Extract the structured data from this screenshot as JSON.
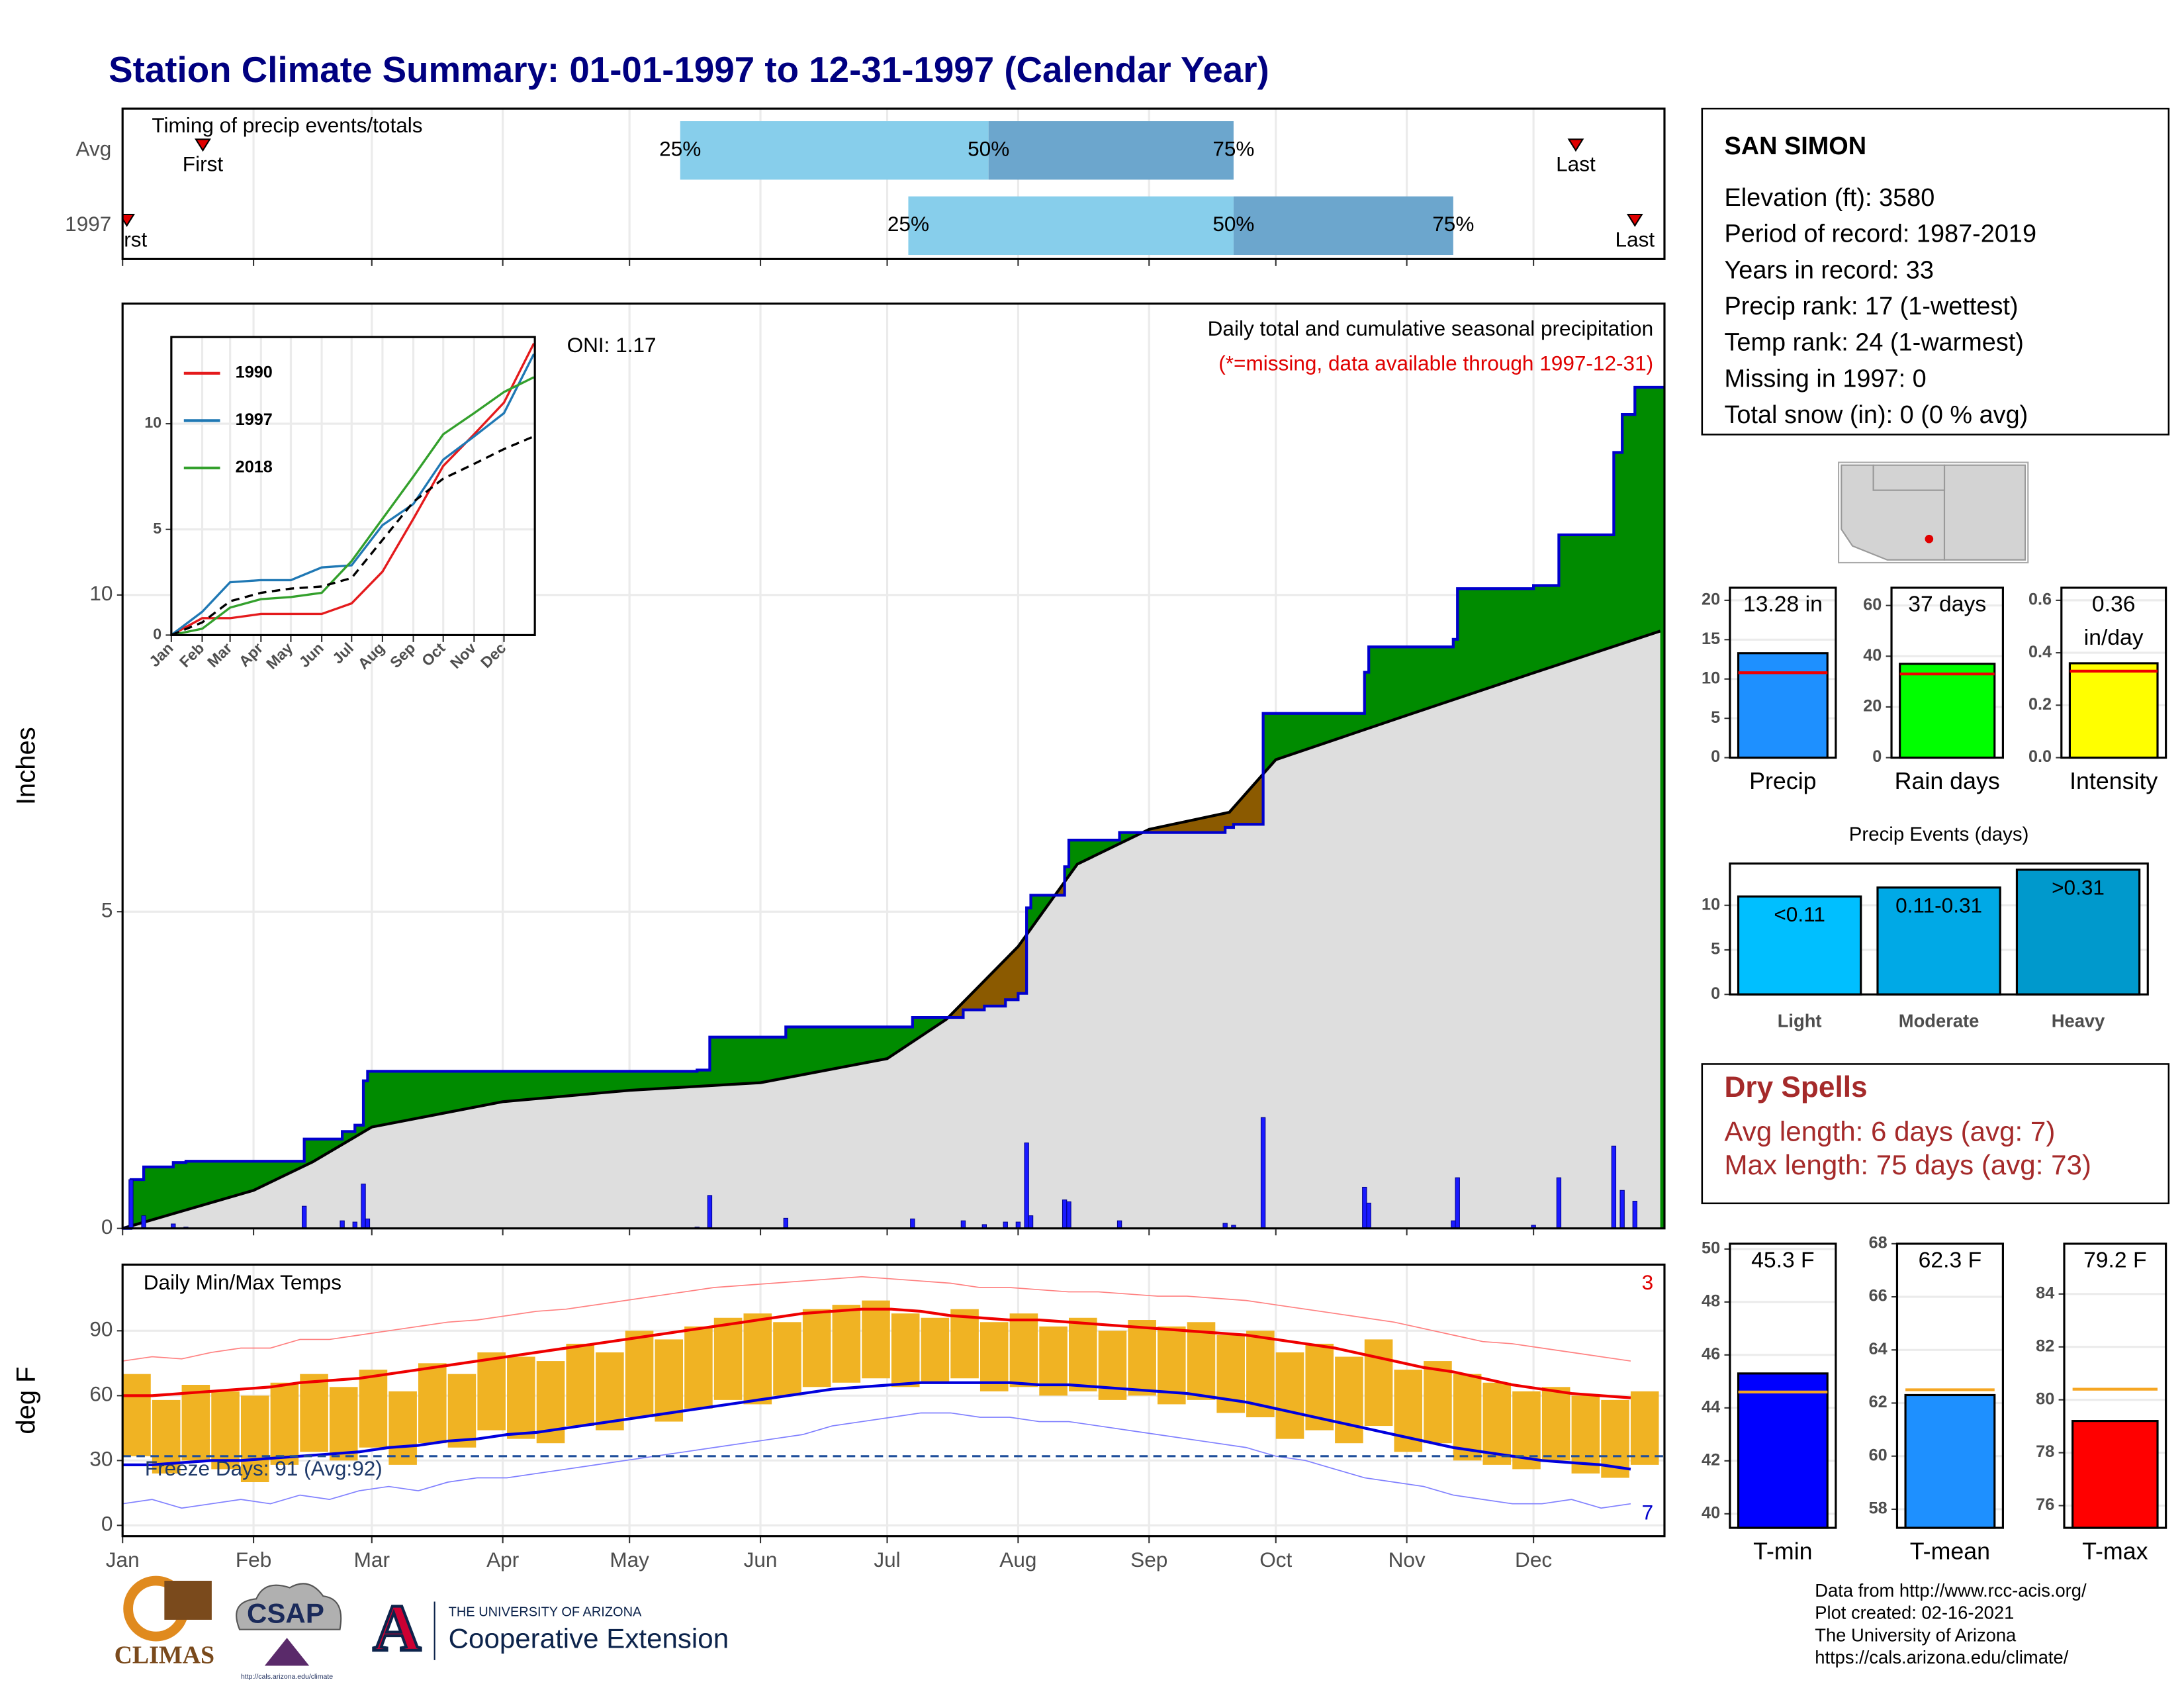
{
  "title": "Station Climate Summary: 01-01-1997 to 12-31-1997 (Calendar Year)",
  "station": {
    "name": "SAN SIMON",
    "lines": [
      "Elevation (ft): 3580",
      "Period of record: 1987-2019",
      "Years in record: 33",
      "Precip rank: 17 (1-wettest)",
      "Temp rank: 24 (1-warmest)",
      "Missing in 1997: 0",
      "Total snow (in): 0 (0 % avg)"
    ]
  },
  "dry_spells": {
    "title": "Dry Spells",
    "lines": [
      "Avg length: 6 days (avg: 7)",
      "Max length: 75 days (avg: 73)"
    ]
  },
  "credits": [
    "Data from http://www.rcc-acis.org/",
    "Plot created: 02-16-2021",
    "The University of Arizona",
    "https://cals.arizona.edu/climate/"
  ],
  "logos": {
    "climas": "CLIMAS",
    "csap": "CSAP",
    "csap_url": "http://cals.arizona.edu/climate",
    "ua_mark": "A",
    "ua": "THE UNIVERSITY OF ARIZONA",
    "coop": "Cooperative Extension"
  },
  "chart_data": [
    {
      "type": "timing",
      "title": "Timing of precip events/totals",
      "marker_labels": [
        "First",
        "25%",
        "50%",
        "75%",
        "Last"
      ],
      "rows": [
        {
          "name": "Avg",
          "values": [
            20,
            133,
            206,
            264,
            345
          ]
        },
        {
          "name": "1997",
          "values": [
            2,
            187,
            264,
            316,
            359
          ]
        }
      ],
      "colors": [
        "#87ceeb",
        "#6ca6cd"
      ],
      "marker_color": "#e00000",
      "xlim": [
        1,
        366
      ],
      "xticks": [
        1,
        32,
        60,
        91,
        121,
        152,
        182,
        213,
        244,
        274,
        305,
        335
      ],
      "grid": true
    },
    {
      "type": "cumulative_precip",
      "subtitle": "Daily total and cumulative seasonal precipitation",
      "note": "(*=missing, data available through 1997-12-31)",
      "oni": "ONI: 1.17",
      "ylabel": "Inches",
      "events": {
        "x": [
          3,
          6,
          13,
          16,
          44,
          53,
          56,
          58,
          59,
          137,
          140,
          158,
          188,
          200,
          205,
          210,
          213,
          215,
          216,
          224,
          225,
          237,
          262,
          264,
          271,
          295,
          296,
          316,
          317,
          335,
          341,
          354,
          356,
          359
        ],
        "values": [
          0.77,
          0.2,
          0.07,
          0.02,
          0.35,
          0.12,
          0.1,
          0.7,
          0.15,
          0.02,
          0.52,
          0.16,
          0.15,
          0.12,
          0.06,
          0.1,
          0.1,
          1.35,
          0.2,
          0.45,
          0.42,
          0.12,
          0.08,
          0.05,
          1.75,
          0.65,
          0.4,
          0.12,
          0.8,
          0.05,
          0.8,
          1.3,
          0.6,
          0.43
        ]
      },
      "average": {
        "x": [
          1,
          32,
          46,
          60,
          91,
          121,
          152,
          182,
          196,
          213,
          227,
          244,
          263,
          274,
          305,
          335,
          365
        ],
        "values": [
          0,
          0.6,
          1.05,
          1.6,
          2.0,
          2.18,
          2.3,
          2.68,
          3.3,
          4.45,
          5.75,
          6.3,
          6.57,
          7.4,
          8.1,
          8.77,
          9.43
        ]
      },
      "above_color": "#008b00",
      "below_color": "#8b5a00",
      "average_color": "#dedede",
      "line_color": "#0000cd",
      "bar_color": "#1a1aff",
      "xlim": [
        1,
        366
      ],
      "xticks": [
        1,
        32,
        60,
        91,
        121,
        152,
        182,
        213,
        244,
        274,
        305,
        335
      ],
      "ylim": [
        0,
        14.6
      ],
      "yticks": [
        0,
        5,
        10
      ],
      "grid": true
    },
    {
      "type": "line",
      "x": [
        1,
        32,
        60,
        91,
        121,
        152,
        182,
        213,
        244,
        274,
        305,
        335,
        365
      ],
      "series": [
        {
          "name": "1990",
          "color": "#e41a1c",
          "values": [
            0,
            0.8,
            0.8,
            1.0,
            1.0,
            1.0,
            1.5,
            3.0,
            5.5,
            8.0,
            9.5,
            11.0,
            13.8
          ]
        },
        {
          "name": "1997",
          "color": "#1f78b4",
          "values": [
            0,
            1.1,
            2.5,
            2.6,
            2.6,
            3.2,
            3.3,
            5.2,
            6.2,
            8.3,
            9.4,
            10.5,
            13.3
          ]
        },
        {
          "name": "2018",
          "color": "#33a02c",
          "values": [
            0,
            0.3,
            1.3,
            1.7,
            1.8,
            2.0,
            3.5,
            5.5,
            7.5,
            9.5,
            10.5,
            11.5,
            12.2
          ]
        }
      ],
      "average": [
        0,
        0.6,
        1.6,
        2.0,
        2.2,
        2.3,
        2.7,
        4.5,
        6.3,
        7.4,
        8.1,
        8.8,
        9.4
      ],
      "xlim": [
        1,
        366
      ],
      "xticks": [
        {
          "value": 1,
          "label": "Jan"
        },
        {
          "value": 32,
          "label": "Feb"
        },
        {
          "value": 60,
          "label": "Mar"
        },
        {
          "value": 91,
          "label": "Apr"
        },
        {
          "value": 121,
          "label": "May"
        },
        {
          "value": 152,
          "label": "Jun"
        },
        {
          "value": 182,
          "label": "Jul"
        },
        {
          "value": 213,
          "label": "Aug"
        },
        {
          "value": 244,
          "label": "Sep"
        },
        {
          "value": 274,
          "label": "Oct"
        },
        {
          "value": 305,
          "label": "Nov"
        },
        {
          "value": 335,
          "label": "Dec"
        }
      ],
      "ylim": [
        0,
        14.1
      ],
      "yticks": [
        0,
        5,
        10
      ],
      "grid": true,
      "legend": "top-left"
    },
    {
      "type": "temperature",
      "title": "Daily Min/Max Temps",
      "freeze_label": "Freeze Days: 91 (Avg:92)",
      "ylabel": "deg F",
      "freeze": 32,
      "record_high_count": 3,
      "record_low_count": 7,
      "x": [
        1,
        8,
        15,
        22,
        29,
        36,
        43,
        50,
        57,
        64,
        71,
        78,
        85,
        92,
        99,
        106,
        113,
        120,
        127,
        134,
        141,
        148,
        155,
        162,
        169,
        176,
        183,
        190,
        197,
        204,
        211,
        218,
        225,
        232,
        239,
        246,
        253,
        260,
        267,
        274,
        281,
        288,
        295,
        302,
        309,
        316,
        323,
        330,
        337,
        344,
        351,
        358
      ],
      "max": [
        70,
        58,
        65,
        62,
        60,
        66,
        70,
        64,
        72,
        62,
        75,
        70,
        80,
        78,
        76,
        84,
        80,
        90,
        86,
        92,
        96,
        98,
        94,
        100,
        102,
        104,
        98,
        96,
        100,
        94,
        98,
        92,
        96,
        90,
        95,
        92,
        94,
        88,
        90,
        80,
        84,
        78,
        86,
        72,
        76,
        70,
        66,
        62,
        64,
        60,
        58,
        62
      ],
      "min": [
        32,
        24,
        30,
        26,
        20,
        28,
        34,
        30,
        36,
        28,
        38,
        36,
        44,
        40,
        38,
        46,
        44,
        50,
        48,
        54,
        58,
        56,
        60,
        64,
        66,
        68,
        64,
        66,
        68,
        62,
        64,
        60,
        62,
        58,
        60,
        56,
        58,
        52,
        50,
        40,
        44,
        38,
        46,
        34,
        38,
        30,
        28,
        26,
        30,
        24,
        22,
        28
      ],
      "avg_max": [
        60,
        60,
        61,
        62,
        63,
        64,
        66,
        67,
        68,
        70,
        72,
        74,
        76,
        78,
        80,
        82,
        84,
        86,
        88,
        90,
        92,
        94,
        96,
        98,
        99,
        100,
        100,
        99,
        97,
        96,
        95,
        95,
        94,
        93,
        92,
        91,
        90,
        89,
        88,
        86,
        84,
        82,
        79,
        76,
        73,
        71,
        68,
        65,
        63,
        61,
        60,
        59
      ],
      "avg_min": [
        28,
        28,
        29,
        30,
        30,
        31,
        32,
        33,
        34,
        36,
        37,
        39,
        40,
        42,
        43,
        45,
        47,
        49,
        51,
        53,
        55,
        57,
        59,
        61,
        63,
        64,
        65,
        66,
        66,
        66,
        66,
        65,
        65,
        64,
        63,
        62,
        61,
        59,
        57,
        54,
        51,
        48,
        45,
        42,
        39,
        36,
        34,
        32,
        30,
        29,
        28,
        26
      ],
      "record_high": [
        76,
        78,
        77,
        80,
        82,
        82,
        86,
        86,
        88,
        90,
        92,
        94,
        95,
        97,
        99,
        100,
        102,
        104,
        106,
        108,
        110,
        111,
        112,
        113,
        114,
        115,
        114,
        113,
        112,
        110,
        110,
        109,
        108,
        108,
        107,
        106,
        106,
        105,
        104,
        102,
        100,
        98,
        96,
        94,
        91,
        88,
        85,
        84,
        82,
        80,
        78,
        76
      ],
      "record_low": [
        10,
        12,
        8,
        10,
        12,
        10,
        14,
        12,
        16,
        18,
        16,
        20,
        22,
        22,
        24,
        26,
        28,
        30,
        32,
        34,
        36,
        38,
        40,
        42,
        46,
        48,
        50,
        52,
        52,
        50,
        50,
        48,
        48,
        46,
        44,
        42,
        40,
        38,
        36,
        32,
        30,
        26,
        22,
        20,
        18,
        14,
        12,
        10,
        10,
        12,
        8,
        10
      ],
      "colors": {
        "bars": "#f0b323",
        "avg_max": "#ee0000",
        "avg_min": "#0000dd",
        "record_high": "#ff8080",
        "record_low": "#8080ff",
        "freeze": "#1f4e9a"
      },
      "xlim": [
        1,
        366
      ],
      "xticks": [
        {
          "value": 1,
          "label": "Jan"
        },
        {
          "value": 32,
          "label": "Feb"
        },
        {
          "value": 60,
          "label": "Mar"
        },
        {
          "value": 91,
          "label": "Apr"
        },
        {
          "value": 121,
          "label": "May"
        },
        {
          "value": 152,
          "label": "Jun"
        },
        {
          "value": 182,
          "label": "Jul"
        },
        {
          "value": 213,
          "label": "Aug"
        },
        {
          "value": 244,
          "label": "Sep"
        },
        {
          "value": 274,
          "label": "Oct"
        },
        {
          "value": 305,
          "label": "Nov"
        },
        {
          "value": 335,
          "label": "Dec"
        }
      ],
      "ylim": [
        -5,
        120.6
      ],
      "yticks": [
        0,
        30,
        60,
        90
      ],
      "grid": true
    },
    {
      "type": "bar",
      "categories": [
        "Precip"
      ],
      "values": [
        13.28
      ],
      "value_labels": [
        "13.28 in"
      ],
      "colors": [
        "#1e90ff"
      ],
      "avg": 10.8,
      "avg_color": "#ee0000",
      "ylim": [
        0,
        21.6
      ],
      "yticks": [
        0,
        5,
        10,
        15,
        20
      ],
      "grid": true
    },
    {
      "type": "bar",
      "categories": [
        "Rain days"
      ],
      "values": [
        37
      ],
      "value_labels": [
        "37 days"
      ],
      "colors": [
        "#00ff00"
      ],
      "avg": 33,
      "avg_color": "#ee0000",
      "ylim": [
        0,
        67
      ],
      "yticks": [
        0,
        20,
        40,
        60
      ],
      "grid": true
    },
    {
      "type": "bar",
      "categories": [
        "Intensity"
      ],
      "values": [
        0.36
      ],
      "value_labels": [
        "0.36 in/day"
      ],
      "colors": [
        "#ffff00"
      ],
      "avg": 0.33,
      "avg_color": "#ee0000",
      "ylim": [
        0,
        0.648
      ],
      "yticks": [
        {
          "value": 0,
          "label": "0.0"
        },
        0.2,
        0.4,
        0.6
      ],
      "grid": true
    },
    {
      "type": "bar",
      "title": "Precip Events (days)",
      "categories": [
        "Light",
        "Moderate",
        "Heavy"
      ],
      "values": [
        11,
        12,
        14
      ],
      "bar_labels": [
        "<0.11",
        "0.11-0.31",
        ">0.31"
      ],
      "colors": [
        "#00bfff",
        "#00a9e6",
        "#0099cc"
      ],
      "ylim": [
        0,
        14.7
      ],
      "yticks": [
        0,
        5,
        10
      ],
      "grid": true
    },
    {
      "type": "bar",
      "categories": [
        "T-min"
      ],
      "values": [
        45.3
      ],
      "value_labels": [
        "45.3 F"
      ],
      "colors": [
        "#0000ff"
      ],
      "avg": 44.6,
      "avg_color": "#f5a623",
      "ylim": [
        39.47,
        50.2
      ],
      "yticks": [
        40,
        42,
        44,
        46,
        48,
        50
      ],
      "grid": true
    },
    {
      "type": "bar",
      "categories": [
        "T-mean"
      ],
      "values": [
        62.3
      ],
      "value_labels": [
        "62.3 F"
      ],
      "colors": [
        "#1e90ff"
      ],
      "avg": 62.5,
      "avg_color": "#f5a623",
      "ylim": [
        57.3,
        68.0
      ],
      "yticks": [
        58,
        60,
        62,
        64,
        66,
        68
      ],
      "grid": true
    },
    {
      "type": "bar",
      "categories": [
        "T-max"
      ],
      "values": [
        79.2
      ],
      "value_labels": [
        "79.2 F"
      ],
      "colors": [
        "#ff0000"
      ],
      "avg": 80.4,
      "avg_color": "#f5a623",
      "ylim": [
        75.16,
        85.9
      ],
      "yticks": [
        76,
        78,
        80,
        82,
        84
      ],
      "grid": true
    }
  ]
}
